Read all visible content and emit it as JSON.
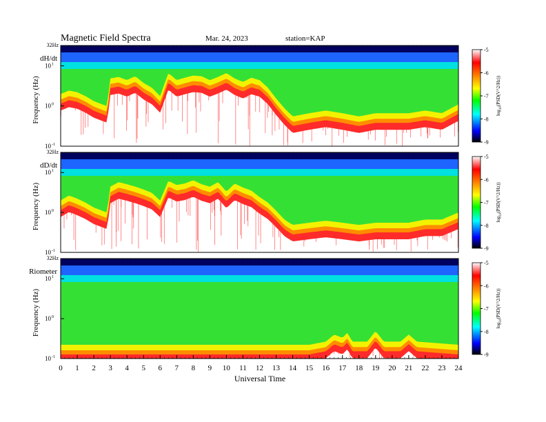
{
  "header": {
    "title": "Magnetic  Field  Spectra",
    "date": "Mar. 24, 2023",
    "station": "station=KAP"
  },
  "colors": {
    "background": "#ffffff",
    "axis": "#000000",
    "low_power": "#000000",
    "mid_power": "#00d000",
    "high_power": "#ff0000"
  },
  "chart_data": {
    "type": "heatmap",
    "xlabel": "Universal Time",
    "xlim": [
      0,
      24
    ],
    "x_ticks": [
      "0",
      "1",
      "2",
      "3",
      "4",
      "5",
      "6",
      "7",
      "8",
      "9",
      "10",
      "11",
      "12",
      "13",
      "14",
      "15",
      "16",
      "17",
      "18",
      "19",
      "20",
      "21",
      "22",
      "23",
      "24"
    ],
    "freq_top_label": "32Hz",
    "panels": [
      {
        "name": "dH/dt",
        "ylabel": "Frequency  (Hz)",
        "yscale": "log",
        "ylim": [
          0.1,
          32
        ],
        "y_ticks": [
          {
            "value": 10,
            "label": "10",
            "exp": "1"
          },
          {
            "value": 1,
            "label": "10",
            "exp": "0"
          },
          {
            "value": 0.1,
            "label": "10",
            "exp": "-1"
          }
        ],
        "red_edge_profile": {
          "ut": [
            0,
            0.5,
            1,
            1.5,
            2,
            2.5,
            2.8,
            3,
            3.5,
            4,
            4.5,
            5,
            5.5,
            6,
            6.5,
            7,
            7.5,
            8,
            8.5,
            9,
            9.5,
            10,
            10.5,
            11,
            11.5,
            12,
            12.5,
            13,
            13.5,
            14,
            15,
            16,
            17,
            18,
            19,
            20,
            21,
            22,
            23,
            24
          ],
          "freq_hz": [
            0.9,
            1.1,
            1.0,
            0.8,
            0.6,
            0.5,
            0.45,
            2.2,
            2.4,
            2.0,
            2.5,
            1.7,
            1.3,
            0.8,
            3.0,
            2.0,
            2.3,
            2.6,
            2.5,
            2.0,
            2.4,
            3.0,
            2.2,
            1.8,
            2.3,
            2.0,
            1.3,
            0.7,
            0.4,
            0.25,
            0.3,
            0.35,
            0.3,
            0.25,
            0.3,
            0.3,
            0.3,
            0.35,
            0.3,
            0.5
          ]
        }
      },
      {
        "name": "dD/dt",
        "ylabel": "Frequency  (Hz)",
        "yscale": "log",
        "ylim": [
          0.1,
          32
        ],
        "y_ticks": [
          {
            "value": 10,
            "label": "10",
            "exp": "1"
          },
          {
            "value": 1,
            "label": "10",
            "exp": "0"
          },
          {
            "value": 0.1,
            "label": "10",
            "exp": "-1"
          }
        ],
        "red_edge_profile": {
          "ut": [
            0,
            0.5,
            1,
            1.5,
            2,
            2.5,
            2.8,
            3,
            3.5,
            4,
            4.5,
            5,
            5.5,
            6,
            6.5,
            7,
            7.5,
            8,
            8.5,
            9,
            9.5,
            10,
            10.5,
            11,
            11.5,
            12,
            12.5,
            13,
            13.5,
            14,
            15,
            16,
            17,
            18,
            19,
            20,
            21,
            22,
            23,
            24
          ],
          "freq_hz": [
            0.9,
            1.2,
            1.0,
            0.8,
            0.6,
            0.5,
            0.45,
            2.0,
            2.6,
            2.3,
            2.0,
            1.7,
            1.4,
            0.9,
            2.8,
            2.2,
            2.4,
            2.9,
            2.3,
            2.0,
            2.6,
            1.5,
            2.4,
            1.9,
            1.6,
            1.1,
            0.8,
            0.5,
            0.3,
            0.22,
            0.25,
            0.28,
            0.25,
            0.22,
            0.25,
            0.25,
            0.25,
            0.3,
            0.3,
            0.45
          ]
        }
      },
      {
        "name": "Riometer",
        "ylabel": "Frequency  (Hz)",
        "yscale": "log",
        "ylim": [
          0.1,
          32
        ],
        "y_ticks": [
          {
            "value": 10,
            "label": "10",
            "exp": "1"
          },
          {
            "value": 1,
            "label": "10",
            "exp": "0"
          },
          {
            "value": 0.1,
            "label": "10",
            "exp": "-1"
          }
        ],
        "red_edge_profile": {
          "ut": [
            0,
            15,
            16,
            16.5,
            17,
            17.3,
            17.6,
            18.5,
            19,
            19.5,
            20.5,
            21,
            21.5,
            24
          ],
          "freq_hz": [
            0.1,
            0.1,
            0.12,
            0.18,
            0.15,
            0.2,
            0.12,
            0.12,
            0.22,
            0.12,
            0.12,
            0.18,
            0.12,
            0.1
          ]
        }
      }
    ],
    "colorbar": {
      "label": "log10(PSD(V^2/Hz))",
      "label_text": "log",
      "label_sub": "10",
      "label_rest": "(PSD(V^2/Hz))",
      "range": [
        -9,
        -5
      ],
      "ticks": [
        "-5",
        "-6",
        "-7",
        "-8",
        "-9"
      ],
      "colormap": [
        "black",
        "blue",
        "cyan",
        "green",
        "yellow",
        "orange",
        "red",
        "white"
      ]
    }
  }
}
